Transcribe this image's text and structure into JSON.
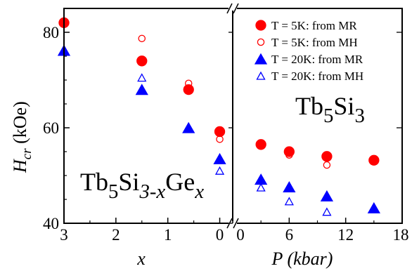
{
  "chart_data": [
    {
      "type": "scatter",
      "panel": "left",
      "xlabel": "x",
      "ylabel_main": "H",
      "ylabel_sub": "cr",
      "ylabel_unit": "(kOe)",
      "xlim": [
        3,
        -0.25
      ],
      "ylim": [
        40,
        85
      ],
      "x_reversed": true,
      "xticks": [
        3,
        2,
        1,
        0
      ],
      "yticks": [
        40,
        60,
        80
      ],
      "annotation": {
        "parts": [
          "Tb",
          "5",
          "Si",
          "3-x",
          "Ge",
          "x"
        ]
      },
      "series": [
        {
          "name": "T = 5K: from MR",
          "marker": "circle",
          "filled": true,
          "color": "#ff0000",
          "points": [
            [
              3.0,
              82.0
            ],
            [
              1.5,
              74.0
            ],
            [
              0.6,
              68.0
            ],
            [
              0.0,
              59.2
            ]
          ]
        },
        {
          "name": "T = 5K: from MH",
          "marker": "circle",
          "filled": false,
          "color": "#ff0000",
          "points": [
            [
              1.5,
              78.7
            ],
            [
              0.6,
              69.3
            ],
            [
              0.0,
              57.6
            ]
          ]
        },
        {
          "name": "T = 20K: from MR",
          "marker": "triangle",
          "filled": true,
          "color": "#0000ff",
          "points": [
            [
              3.0,
              76.2
            ],
            [
              1.5,
              68.0
            ],
            [
              0.6,
              60.0
            ],
            [
              0.0,
              53.5
            ]
          ]
        },
        {
          "name": "T = 20K: from MH",
          "marker": "triangle",
          "filled": false,
          "color": "#0000ff",
          "points": [
            [
              1.5,
              70.5
            ],
            [
              0.0,
              51.0
            ]
          ]
        }
      ]
    },
    {
      "type": "scatter",
      "panel": "right",
      "xlabel": "P (kbar)",
      "xlim": [
        0,
        18
      ],
      "ylim": [
        40,
        85
      ],
      "xticks": [
        0,
        6,
        12,
        18
      ],
      "xtick_labels": [
        "0",
        "6",
        "12",
        "18"
      ],
      "annotation": {
        "parts": [
          "Tb",
          "5",
          "Si",
          "3"
        ]
      },
      "legend_position": "top-right",
      "series": [
        {
          "name": "T = 5K: from MR",
          "marker": "circle",
          "filled": true,
          "color": "#ff0000",
          "points": [
            [
              3.0,
              56.5
            ],
            [
              6.0,
              55.0
            ],
            [
              10.0,
              54.0
            ],
            [
              15.0,
              53.2
            ]
          ]
        },
        {
          "name": "T = 5K: from MH",
          "marker": "circle",
          "filled": false,
          "color": "#ff0000",
          "points": [
            [
              3.0,
              56.2
            ],
            [
              6.0,
              54.3
            ],
            [
              10.0,
              52.2
            ]
          ]
        },
        {
          "name": "T = 20K: from MR",
          "marker": "triangle",
          "filled": true,
          "color": "#0000ff",
          "points": [
            [
              3.0,
              49.2
            ],
            [
              6.0,
              47.6
            ],
            [
              10.0,
              45.7
            ],
            [
              15.0,
              43.2
            ]
          ]
        },
        {
          "name": "T = 20K: from MH",
          "marker": "triangle",
          "filled": false,
          "color": "#0000ff",
          "points": [
            [
              3.0,
              47.5
            ],
            [
              6.0,
              44.6
            ],
            [
              10.0,
              42.4
            ]
          ]
        }
      ]
    }
  ]
}
